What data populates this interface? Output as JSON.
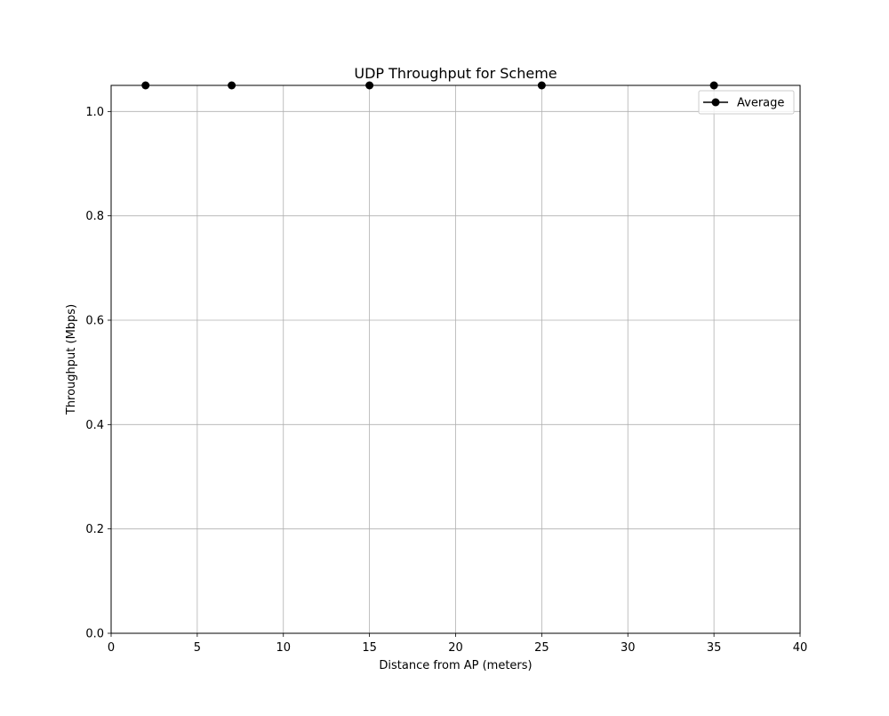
{
  "colors": {
    "background": "#ffffff",
    "grid": "#b0b0b0",
    "series": "#000000",
    "axes": "#000000"
  },
  "chart_data": {
    "type": "line",
    "title": "UDP Throughput for Scheme",
    "xlabel": "Distance from AP (meters)",
    "ylabel": "Throughput (Mbps)",
    "xlim": [
      0,
      40
    ],
    "ylim": [
      0,
      1.05
    ],
    "xticks": [
      0,
      5,
      10,
      15,
      20,
      25,
      30,
      35,
      40
    ],
    "xtick_labels": [
      "0",
      "5",
      "10",
      "15",
      "20",
      "25",
      "30",
      "35",
      "40"
    ],
    "yticks": [
      0.0,
      0.2,
      0.4,
      0.6,
      0.8,
      1.0
    ],
    "ytick_labels": [
      "0.0",
      "0.2",
      "0.4",
      "0.6",
      "0.8",
      "1.0"
    ],
    "grid": true,
    "legend": "top-right",
    "x": [
      2,
      7,
      15,
      25,
      35
    ],
    "series": [
      {
        "name": "Average",
        "values": [
          1.05,
          1.05,
          1.05,
          1.05,
          1.05
        ],
        "marker": "circle",
        "line_style": "none",
        "color": "#000000"
      }
    ]
  }
}
